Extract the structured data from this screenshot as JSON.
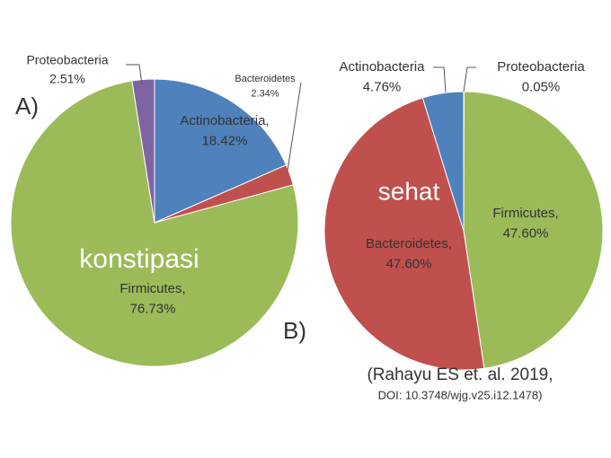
{
  "chart_data": [
    {
      "type": "pie",
      "panel": "A)",
      "annotation": "konstipasi",
      "categories": [
        "Actinobacteria,",
        "Bacteroidetes",
        "Firmicutes,",
        "Proteobacteria"
      ],
      "values": [
        18.42,
        2.34,
        76.73,
        2.51
      ],
      "value_labels": [
        "18.42%",
        "2.34%",
        "76.73%",
        "2.51%"
      ],
      "colors": [
        "#4f81bd",
        "#c0504d",
        "#9bbb59",
        "#8064a2"
      ]
    },
    {
      "type": "pie",
      "panel": "B)",
      "annotation": "sehat",
      "categories": [
        "Proteobacteria",
        "Firmicutes,",
        "Bacteroidetes,",
        "Actinobacteria"
      ],
      "values": [
        0.05,
        47.6,
        47.6,
        4.76
      ],
      "value_labels": [
        "0.05%",
        "47.60%",
        "47.60%",
        "4.76%"
      ],
      "colors": [
        "#8064a2",
        "#9bbb59",
        "#c0504d",
        "#4f81bd"
      ]
    }
  ],
  "citation": [
    "(Rahayu ES et. al. 2019,",
    "DOI: 10.3748/wjg.v25.i12.1478)"
  ]
}
